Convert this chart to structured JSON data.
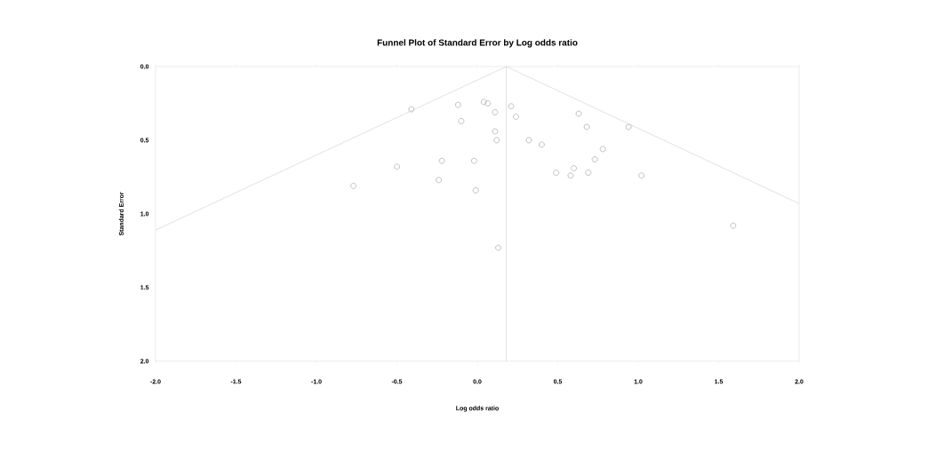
{
  "chart_data": {
    "type": "scatter",
    "title": "Funnel Plot of Standard Error by Log odds ratio",
    "xlabel": "Log odds ratio",
    "ylabel": "Standard Error",
    "xlim": [
      -2.0,
      2.0
    ],
    "ylim": [
      2.0,
      0.0
    ],
    "xticks": [
      {
        "value": -2,
        "label": "-2.0"
      },
      {
        "value": -1.5,
        "label": "-1.5"
      },
      {
        "value": -1,
        "label": "-1.0"
      },
      {
        "value": -0.5,
        "label": "-0.5"
      },
      {
        "value": 0,
        "label": "0.0"
      },
      {
        "value": 0.5,
        "label": "0.5"
      },
      {
        "value": 1,
        "label": "1.0"
      },
      {
        "value": 1.5,
        "label": "1.5"
      },
      {
        "value": 2,
        "label": "2.0"
      }
    ],
    "yticks": [
      {
        "value": 0,
        "label": "0.0"
      },
      {
        "value": 0.5,
        "label": "0.5"
      },
      {
        "value": 1,
        "label": "1.0"
      },
      {
        "value": 1.5,
        "label": "1.5"
      },
      {
        "value": 2,
        "label": "2.0"
      }
    ],
    "series": [
      {
        "marker": "circle",
        "color": "#999999",
        "x": [
          -0.41,
          -0.12,
          0.04,
          0.065,
          0.11,
          -0.1,
          0.11,
          0.12,
          0.21,
          0.24,
          0.32,
          0.4,
          0.49,
          -0.5,
          -0.22,
          -0.02,
          -0.77,
          -0.24,
          -0.01,
          0.13,
          0.63,
          0.68,
          0.94,
          0.78,
          0.73,
          0.6,
          0.58,
          0.69,
          1.02,
          1.59
        ],
        "values": [
          0.29,
          0.26,
          0.24,
          0.25,
          0.31,
          0.37,
          0.44,
          0.5,
          0.27,
          0.34,
          0.5,
          0.53,
          0.72,
          0.68,
          0.64,
          0.64,
          0.81,
          0.77,
          0.84,
          1.23,
          0.32,
          0.41,
          0.41,
          0.56,
          0.63,
          0.69,
          0.74,
          0.72,
          0.74,
          1.08
        ]
      },
      {
        "type": "line",
        "marker": "none",
        "color": "#cccccc",
        "x": [
          -2.0,
          0.18,
          2.0
        ],
        "values": [
          1.11,
          0.0,
          0.93
        ]
      }
    ],
    "ref_lines": [
      {
        "axis": "x",
        "value": 0.18,
        "color": "#cccccc"
      }
    ]
  }
}
